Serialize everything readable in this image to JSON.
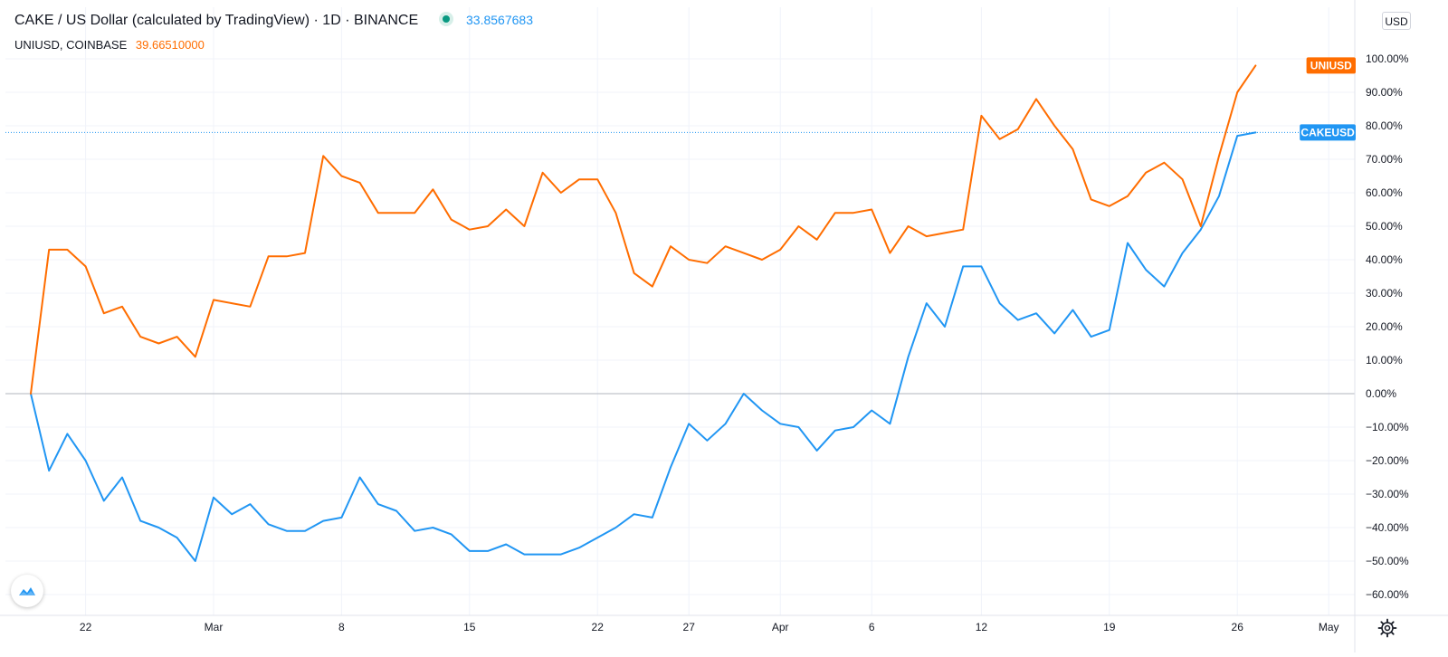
{
  "legend": {
    "main_title": "CAKE / US Dollar (calculated by TradingView)",
    "interval": "1D",
    "exchange": "BINANCE",
    "main_value": "33.8567683",
    "compare_symbol": "UNIUSD",
    "compare_exchange": "COINBASE",
    "compare_value": "39.66510000"
  },
  "currency_button": "USD",
  "colors": {
    "cake": "#2196f3",
    "uni": "#ff6d00",
    "text": "#131722",
    "grid": "#f0f3fa",
    "zero_line": "#b2b5be",
    "status_dot": "#089981"
  },
  "icons": [
    "tradingview-logo-icon",
    "gear-icon"
  ],
  "chart_data": {
    "type": "line",
    "title": "CAKE / US Dollar (calculated by TradingView) · 1D · BINANCE",
    "ylabel": "",
    "y_unit": "%",
    "ylim": [
      -66,
      110
    ],
    "y_ticks": [
      -60,
      -50,
      -40,
      -30,
      -20,
      -10,
      0,
      10,
      20,
      30,
      40,
      50,
      60,
      70,
      80,
      90,
      100
    ],
    "y_tick_labels": [
      "−60.00%",
      "−50.00%",
      "−40.00%",
      "−30.00%",
      "−20.00%",
      "−10.00%",
      "0.00%",
      "10.00%",
      "20.00%",
      "30.00%",
      "40.00%",
      "50.00%",
      "60.00%",
      "70.00%",
      "80.00%",
      "90.00%",
      "100.00%"
    ],
    "x_ticks": [
      {
        "label": "22",
        "day": 3
      },
      {
        "label": "Mar",
        "day": 10
      },
      {
        "label": "8",
        "day": 17
      },
      {
        "label": "15",
        "day": 24
      },
      {
        "label": "22",
        "day": 31
      },
      {
        "label": "27",
        "day": 36
      },
      {
        "label": "Apr",
        "day": 41
      },
      {
        "label": "6",
        "day": 46
      },
      {
        "label": "12",
        "day": 52
      },
      {
        "label": "19",
        "day": 59
      },
      {
        "label": "26",
        "day": 66
      },
      {
        "label": "May",
        "day": 71
      }
    ],
    "grid": true,
    "series": [
      {
        "name": "CAKEUSD",
        "color": "#2196f3",
        "last_value_label": "CAKEUSD",
        "values": [
          0,
          -23,
          -12,
          -20,
          -32,
          -25,
          -38,
          -40,
          -43,
          -50,
          -31,
          -36,
          -33,
          -39,
          -41,
          -41,
          -38,
          -37,
          -25,
          -33,
          -35,
          -41,
          -40,
          -42,
          -47,
          -47,
          -45,
          -48,
          -48,
          -48,
          -46,
          -43,
          -40,
          -36,
          -37,
          -22,
          -9,
          -14,
          -9,
          0,
          -5,
          -9,
          -10,
          -17,
          -11,
          -10,
          -5,
          -9,
          11,
          27,
          20,
          38,
          38,
          27,
          22,
          24,
          18,
          25,
          17,
          19,
          45,
          37,
          32,
          42,
          49,
          59,
          77,
          78
        ]
      },
      {
        "name": "UNIUSD",
        "color": "#ff6d00",
        "last_value_label": "UNIUSD",
        "values": [
          0,
          43,
          43,
          38,
          24,
          26,
          17,
          15,
          17,
          11,
          28,
          27,
          26,
          41,
          41,
          42,
          71,
          65,
          63,
          54,
          54,
          54,
          61,
          52,
          49,
          50,
          55,
          50,
          66,
          60,
          64,
          64,
          54,
          36,
          32,
          44,
          40,
          39,
          44,
          42,
          40,
          43,
          50,
          46,
          54,
          54,
          55,
          42,
          50,
          47,
          48,
          49,
          83,
          76,
          79,
          88,
          80,
          73,
          58,
          56,
          59,
          66,
          69,
          64,
          50,
          71,
          90,
          98
        ]
      }
    ]
  }
}
